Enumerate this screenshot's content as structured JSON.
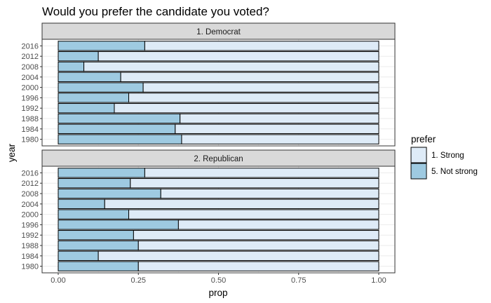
{
  "chart_data": {
    "type": "bar",
    "title": "Would you prefer the candidate you voted?",
    "xlabel": "prop",
    "ylabel": "year",
    "xlim": [
      0,
      1
    ],
    "x_ticks": [
      "0.00",
      "0.25",
      "0.50",
      "0.75",
      "1.00"
    ],
    "categories": [
      "2016",
      "2012",
      "2008",
      "2004",
      "2000",
      "1996",
      "1992",
      "1988",
      "1984",
      "1980"
    ],
    "legend": {
      "title": "prefer",
      "position": "right",
      "items": [
        {
          "label": "1. Strong",
          "color": "#deebf7"
        },
        {
          "label": "5. Not strong",
          "color": "#9ecae1"
        }
      ]
    },
    "stacked": true,
    "grid": true,
    "panels": [
      {
        "label": "1. Democrat",
        "series": [
          {
            "name": "5. Not strong",
            "values": [
              0.27,
              0.125,
              0.08,
              0.195,
              0.265,
              0.22,
              0.175,
              0.38,
              0.365,
              0.385
            ]
          },
          {
            "name": "1. Strong",
            "values": [
              0.73,
              0.875,
              0.92,
              0.805,
              0.735,
              0.78,
              0.825,
              0.62,
              0.635,
              0.615
            ]
          }
        ]
      },
      {
        "label": "2. Republican",
        "series": [
          {
            "name": "5. Not strong",
            "values": [
              0.27,
              0.225,
              0.32,
              0.145,
              0.22,
              0.375,
              0.235,
              0.25,
              0.125,
              0.25
            ]
          },
          {
            "name": "1. Strong",
            "values": [
              0.73,
              0.775,
              0.68,
              0.855,
              0.78,
              0.625,
              0.765,
              0.75,
              0.875,
              0.75
            ]
          }
        ]
      }
    ]
  }
}
